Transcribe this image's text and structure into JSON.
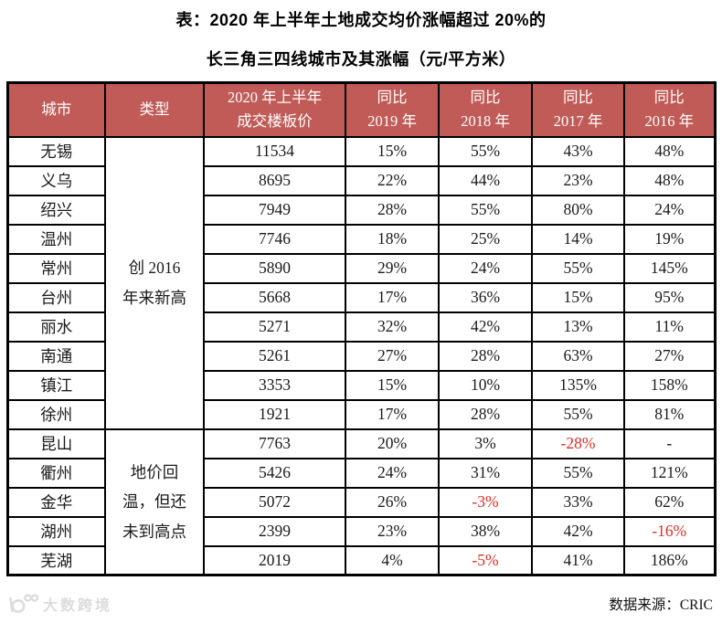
{
  "title": {
    "line1": "表：2020 年上半年土地成交均价涨幅超过 20%的",
    "line2": "长三角三四线城市及其涨幅（元/平方米）"
  },
  "colors": {
    "header_bg": "#c15b57",
    "header_text": "#ffffff",
    "negative_text": "#e52a20",
    "border": "#000000",
    "watermark": "#dcdcdc"
  },
  "table": {
    "headers": [
      {
        "label": "城市",
        "lines": [
          "城市"
        ]
      },
      {
        "label": "类型",
        "lines": [
          "类型"
        ]
      },
      {
        "label": "2020 年上半年成交楼板价",
        "lines": [
          "2020 年上半年",
          "成交楼板价"
        ]
      },
      {
        "label": "同比 2019 年",
        "lines": [
          "同比",
          "2019 年"
        ]
      },
      {
        "label": "同比 2018 年",
        "lines": [
          "同比",
          "2018 年"
        ]
      },
      {
        "label": "同比 2017 年",
        "lines": [
          "同比",
          "2017 年"
        ]
      },
      {
        "label": "同比 2016 年",
        "lines": [
          "同比",
          "2016 年"
        ]
      }
    ],
    "type_groups": [
      {
        "label": "创 2016 年来新高",
        "lines": [
          "创 2016",
          "年来新高"
        ],
        "row_span": 10
      },
      {
        "label": "地价回温，但还未到高点",
        "lines": [
          "地价回",
          "温，但还",
          "未到高点"
        ],
        "row_span": 5
      }
    ],
    "rows": [
      {
        "city": "无锡",
        "price": "11534",
        "yoy": [
          "15%",
          "55%",
          "43%",
          "48%"
        ]
      },
      {
        "city": "义乌",
        "price": "8695",
        "yoy": [
          "22%",
          "44%",
          "23%",
          "48%"
        ]
      },
      {
        "city": "绍兴",
        "price": "7949",
        "yoy": [
          "28%",
          "55%",
          "80%",
          "24%"
        ]
      },
      {
        "city": "温州",
        "price": "7746",
        "yoy": [
          "18%",
          "25%",
          "14%",
          "19%"
        ]
      },
      {
        "city": "常州",
        "price": "5890",
        "yoy": [
          "29%",
          "24%",
          "55%",
          "145%"
        ]
      },
      {
        "city": "台州",
        "price": "5668",
        "yoy": [
          "17%",
          "36%",
          "15%",
          "95%"
        ]
      },
      {
        "city": "丽水",
        "price": "5271",
        "yoy": [
          "32%",
          "42%",
          "13%",
          "11%"
        ]
      },
      {
        "city": "南通",
        "price": "5261",
        "yoy": [
          "27%",
          "28%",
          "63%",
          "27%"
        ]
      },
      {
        "city": "镇江",
        "price": "3353",
        "yoy": [
          "15%",
          "10%",
          "135%",
          "158%"
        ]
      },
      {
        "city": "徐州",
        "price": "1921",
        "yoy": [
          "17%",
          "28%",
          "55%",
          "81%"
        ]
      },
      {
        "city": "昆山",
        "price": "7763",
        "yoy": [
          "20%",
          "3%",
          "-28%",
          "-"
        ]
      },
      {
        "city": "衢州",
        "price": "5426",
        "yoy": [
          "24%",
          "31%",
          "55%",
          "121%"
        ]
      },
      {
        "city": "金华",
        "price": "5072",
        "yoy": [
          "26%",
          "-3%",
          "33%",
          "62%"
        ]
      },
      {
        "city": "湖州",
        "price": "2399",
        "yoy": [
          "23%",
          "38%",
          "42%",
          "-16%"
        ]
      },
      {
        "city": "芜湖",
        "price": "2019",
        "yoy": [
          "4%",
          "-5%",
          "41%",
          "186%"
        ]
      }
    ]
  },
  "footer": {
    "watermark": "大数跨境",
    "source": "数据来源：CRIC"
  }
}
